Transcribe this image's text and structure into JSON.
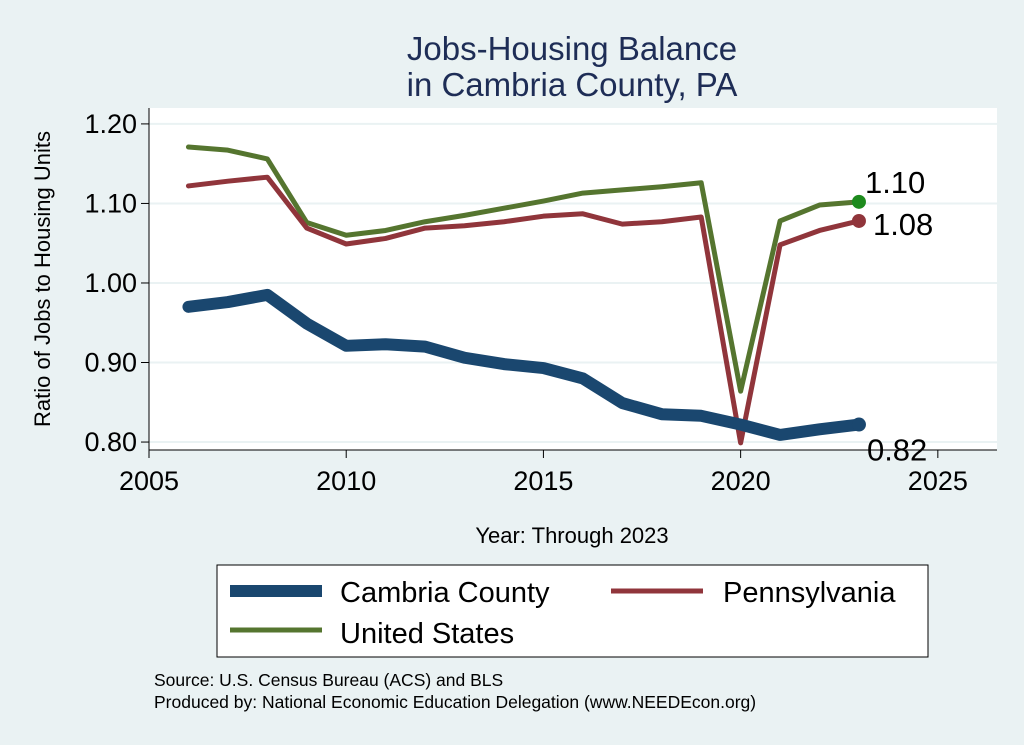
{
  "chart_data": {
    "type": "line",
    "title": [
      "Jobs-Housing Balance",
      "in Cambria County, PA"
    ],
    "xlabel": "Year: Through 2023",
    "ylabel": "Ratio of Jobs to Housing Units",
    "xlim": [
      2005,
      2026.5
    ],
    "ylim": [
      0.79,
      1.22
    ],
    "xticks": [
      "2005",
      "2010",
      "2015",
      "2020",
      "2025"
    ],
    "yticks": [
      "0.80",
      "0.90",
      "1.00",
      "1.10",
      "1.20"
    ],
    "x": [
      2006,
      2007,
      2008,
      2009,
      2010,
      2011,
      2012,
      2013,
      2014,
      2015,
      2016,
      2017,
      2018,
      2019,
      2020,
      2021,
      2022,
      2023
    ],
    "series": [
      {
        "name": "Cambria County",
        "color": "#1a476f",
        "width": "thick",
        "values": [
          0.97,
          0.976,
          0.985,
          0.949,
          0.921,
          0.923,
          0.92,
          0.906,
          0.898,
          0.893,
          0.88,
          0.849,
          0.835,
          0.833,
          0.822,
          0.809,
          0.816,
          0.822
        ],
        "end_label": "0.82",
        "end_marker_color": "#1a476f"
      },
      {
        "name": "Pennsylvania",
        "color": "#90353b",
        "width": "medium",
        "values": [
          1.122,
          1.128,
          1.133,
          1.069,
          1.049,
          1.056,
          1.069,
          1.072,
          1.077,
          1.084,
          1.087,
          1.074,
          1.077,
          1.083,
          0.799,
          1.048,
          1.066,
          1.078
        ],
        "end_label": "1.08",
        "end_marker_color": "#90353b"
      },
      {
        "name": "United States",
        "color": "#55752f",
        "width": "medium",
        "values": [
          1.171,
          1.167,
          1.156,
          1.076,
          1.06,
          1.066,
          1.077,
          1.085,
          1.094,
          1.103,
          1.113,
          1.117,
          1.121,
          1.126,
          0.864,
          1.078,
          1.098,
          1.102
        ],
        "end_label": "1.10",
        "end_marker_color": "#1d8a1d"
      }
    ],
    "legend": [
      "Cambria County",
      "Pennsylvania",
      "United States"
    ],
    "legend_position": "bottom",
    "grid": true,
    "source_lines": [
      "Source: U.S. Census Bureau (ACS) and BLS",
      "Produced by: National Economic Education Delegation (www.NEEDEcon.org)"
    ]
  }
}
